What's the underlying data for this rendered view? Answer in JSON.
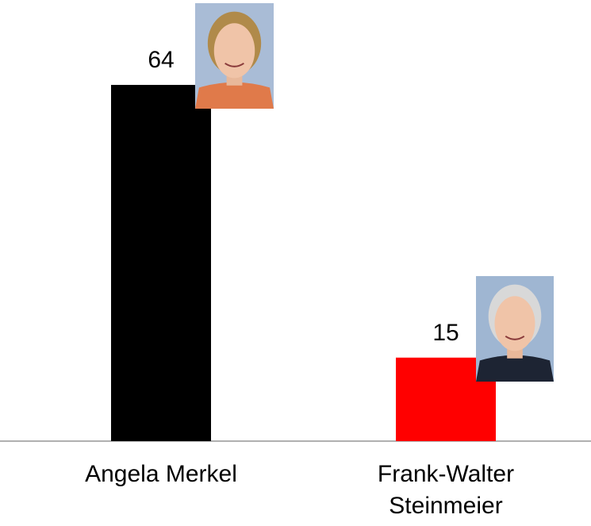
{
  "chart_data": {
    "type": "bar",
    "categories": [
      "Angela Merkel",
      "Frank-Walter Steinmeier"
    ],
    "values": [
      64,
      15
    ],
    "colors": [
      "#000000",
      "#ff0000"
    ]
  }
}
